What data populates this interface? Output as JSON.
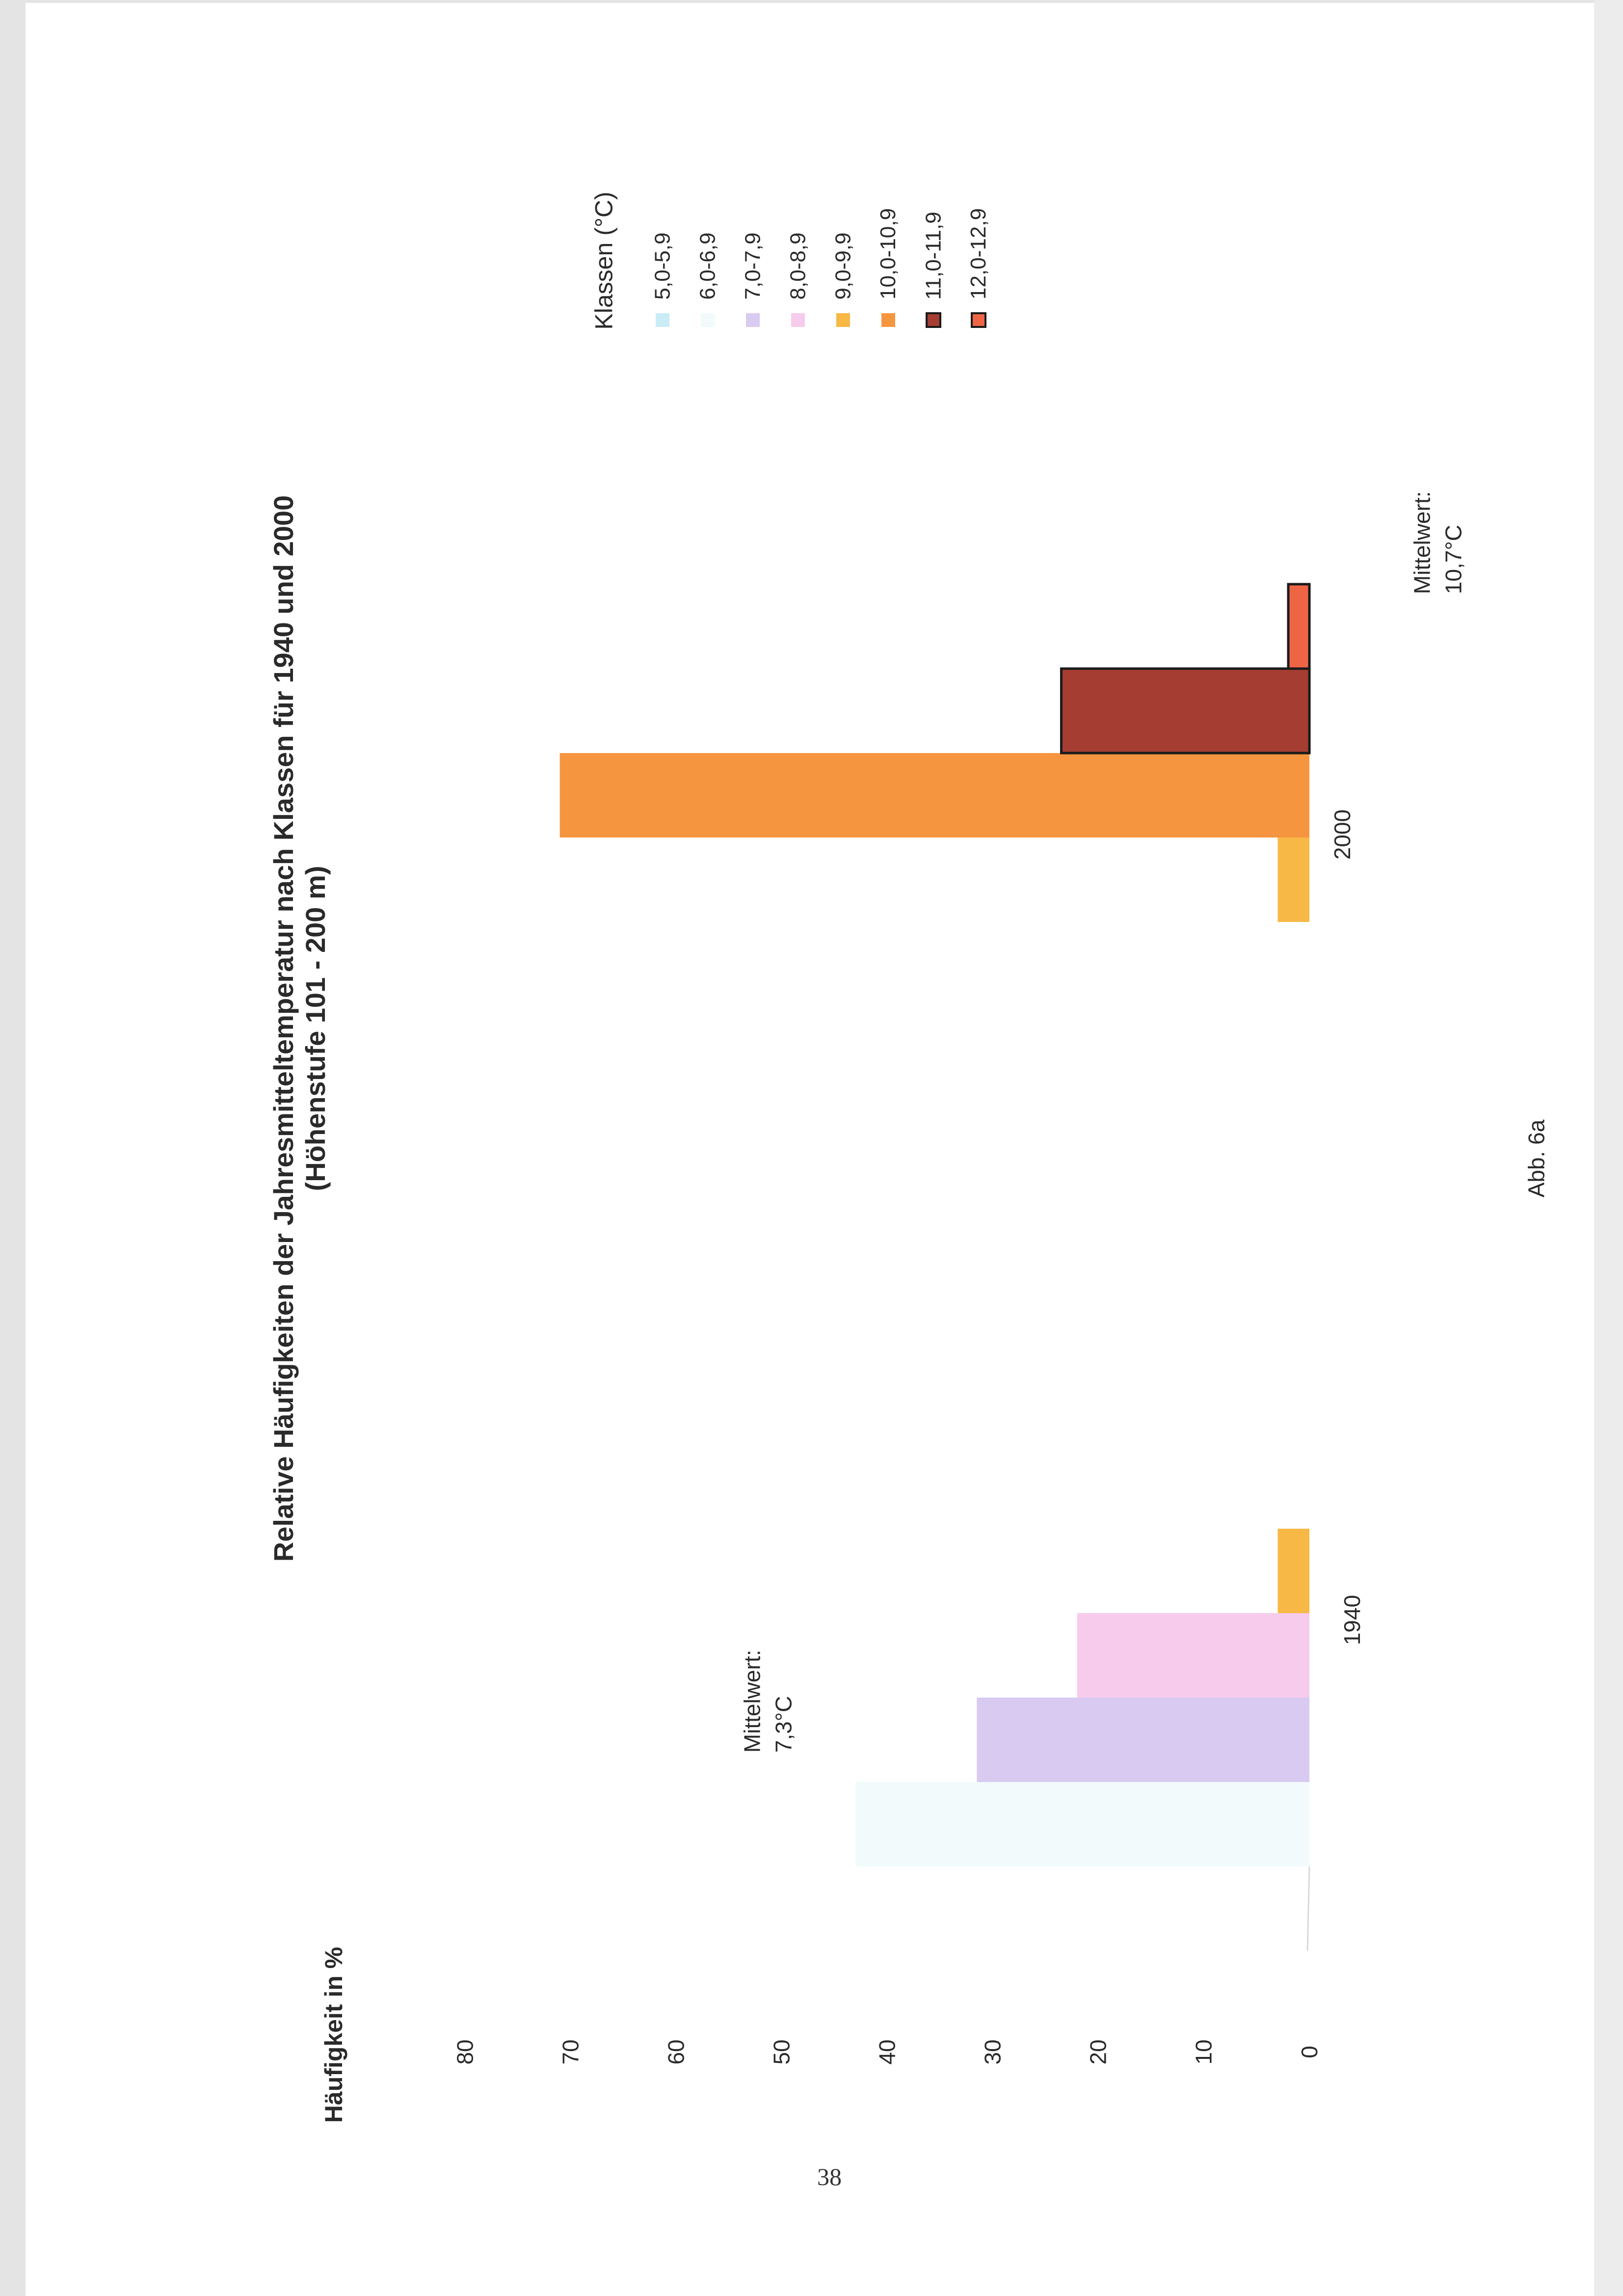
{
  "page": {
    "number": "38",
    "figure_caption": "Abb. 6a"
  },
  "chart_data": {
    "type": "bar",
    "title": "Relative Häufigkeiten der Jahresmitteltemperatur nach Klassen für 1940 und 2000",
    "subtitle": "(Höhenstufe 101 - 200 m)",
    "ylabel": "Häufigkeit in %",
    "xlabel": "",
    "ylim": [
      0,
      80
    ],
    "yticks": [
      0,
      10,
      20,
      30,
      40,
      50,
      60,
      70,
      80
    ],
    "grid": false,
    "orientation": "rotated-90-ccw",
    "legend": {
      "title": "Klassen (°C)",
      "placement": "right",
      "entries": [
        {
          "label": "5,0-5,9",
          "color": "#c9ecf7",
          "outlined": false
        },
        {
          "label": "6,0-6,9",
          "color": "#f2fafb",
          "outlined": false
        },
        {
          "label": "7,0-7,9",
          "color": "#d8caf1",
          "outlined": false
        },
        {
          "label": "8,0-8,9",
          "color": "#f7cbec",
          "outlined": false
        },
        {
          "label": "9,0-9,9",
          "color": "#f7b846",
          "outlined": false
        },
        {
          "label": "10,0-10,9",
          "color": "#f6953f",
          "outlined": false
        },
        {
          "label": "11,0-11,9",
          "color": "#a63d32",
          "outlined": true
        },
        {
          "label": "12,0-12,9",
          "color": "#ee6546",
          "outlined": true
        }
      ]
    },
    "categories": [
      "1940",
      "2000"
    ],
    "groups": [
      {
        "category": "1940",
        "annotation_line1": "Mittelwert:",
        "annotation_line2": "7,3°C",
        "bars": [
          {
            "class": "5,0-5,9",
            "value": 0
          },
          {
            "class": "6,0-6,9",
            "value": 43
          },
          {
            "class": "7,0-7,9",
            "value": 31.5
          },
          {
            "class": "8,0-8,9",
            "value": 22
          },
          {
            "class": "9,0-9,9",
            "value": 3
          }
        ]
      },
      {
        "category": "2000",
        "annotation_line1": "Mittelwert:",
        "annotation_line2": "10,7°C",
        "bars": [
          {
            "class": "9,0-9,9",
            "value": 3
          },
          {
            "class": "10,0-10,9",
            "value": 71
          },
          {
            "class": "11,0-11,9",
            "value": 23.5
          },
          {
            "class": "12,0-12,9",
            "value": 2
          }
        ]
      }
    ]
  }
}
